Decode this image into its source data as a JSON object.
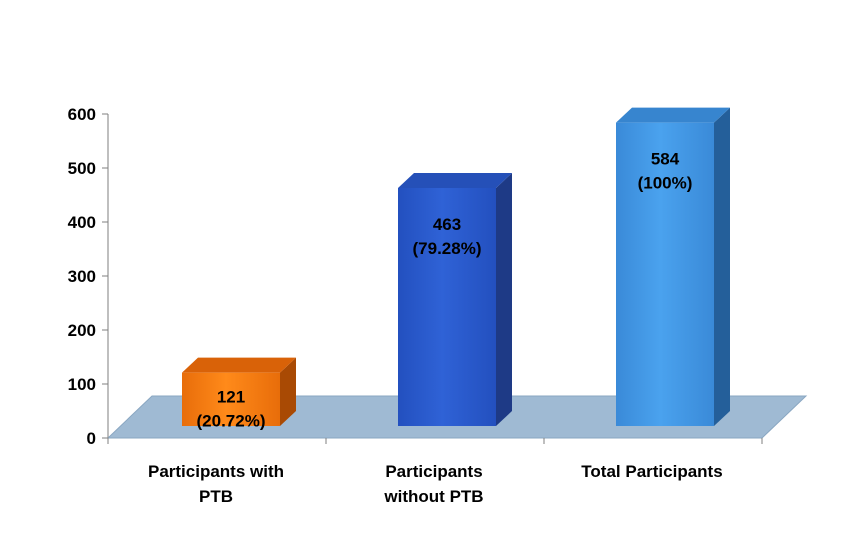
{
  "chart_data": {
    "type": "bar",
    "categories": [
      [
        "Participants with",
        "PTB"
      ],
      [
        "Participants",
        "without PTB"
      ],
      [
        "Total Participants"
      ]
    ],
    "values": [
      121,
      463,
      584
    ],
    "data_labels": [
      [
        "121",
        "(20.72%)"
      ],
      [
        "463",
        "(79.28%)"
      ],
      [
        "584",
        "(100%)"
      ]
    ],
    "ylim": [
      0,
      600
    ],
    "yticks": [
      0,
      100,
      200,
      300,
      400,
      500,
      600
    ],
    "grid": false,
    "legend": "none",
    "title": "",
    "xlabel": "",
    "ylabel": "",
    "colors": {
      "bars": [
        {
          "front_top": "#ff8a1a",
          "front_bottom": "#e86d0a",
          "side": "#a94a04",
          "top": "#d96208"
        },
        {
          "front_top": "#2f62d6",
          "front_bottom": "#2350bf",
          "side": "#1e3a86",
          "top": "#2550b8"
        },
        {
          "front_top": "#4aa2ee",
          "front_bottom": "#3a8ad8",
          "side": "#245f9a",
          "top": "#3785cf"
        }
      ],
      "floor": "#9fbad3",
      "floor_edge": "#8aa7c2",
      "axis": "#7f7f7f"
    }
  }
}
